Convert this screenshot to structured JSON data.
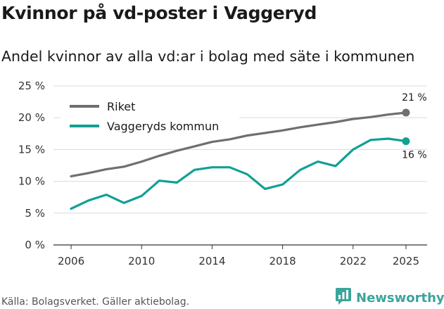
{
  "header": {
    "title": "Kvinnor på vd-poster i Vaggeryd",
    "subtitle": "Andel kvinnor av alla vd:ar i bolag med säte i kommunen"
  },
  "footer": {
    "source": "Källa: Bolagsverket. Gäller aktiebolag.",
    "brand": "Newsworthy",
    "brand_icon": "newsworthy-logo-icon"
  },
  "colors": {
    "riket": "#6e6e73",
    "kommun": "#11a094",
    "grid": "#d9d9d9",
    "brand": "#3aa59b"
  },
  "chart_data": {
    "type": "line",
    "title": "Kvinnor på vd-poster i Vaggeryd",
    "xlabel": "",
    "ylabel": "",
    "xlim": [
      2005,
      2026.2
    ],
    "ylim": [
      0,
      25
    ],
    "grid": true,
    "legend_position": "top-left",
    "x_ticks": [
      2006,
      2010,
      2014,
      2018,
      2022,
      2025
    ],
    "x_tick_labels": [
      "2006",
      "2010",
      "2014",
      "2018",
      "2022",
      "2025"
    ],
    "y_ticks": [
      0,
      5,
      10,
      15,
      20,
      25
    ],
    "y_tick_labels": [
      "0 %",
      "5 %",
      "10 %",
      "15 %",
      "20 %",
      "25 %"
    ],
    "x": [
      2006,
      2007,
      2008,
      2009,
      2010,
      2011,
      2012,
      2013,
      2014,
      2015,
      2016,
      2017,
      2018,
      2019,
      2020,
      2021,
      2022,
      2023,
      2024,
      2025
    ],
    "series": [
      {
        "name": "Riket",
        "color": "#6e6e73",
        "values": [
          10.8,
          11.3,
          11.9,
          12.3,
          13.1,
          14.0,
          14.8,
          15.5,
          16.2,
          16.6,
          17.2,
          17.6,
          18.0,
          18.5,
          18.9,
          19.3,
          19.8,
          20.1,
          20.5,
          20.8
        ],
        "end_label": "21 %"
      },
      {
        "name": "Vaggeryds kommun",
        "color": "#11a094",
        "values": [
          5.7,
          7.0,
          7.9,
          6.6,
          7.7,
          10.1,
          9.8,
          11.8,
          12.2,
          12.2,
          11.1,
          8.8,
          9.5,
          11.8,
          13.1,
          12.4,
          15.0,
          16.5,
          16.7,
          16.3
        ],
        "end_label": "16 %"
      }
    ]
  }
}
